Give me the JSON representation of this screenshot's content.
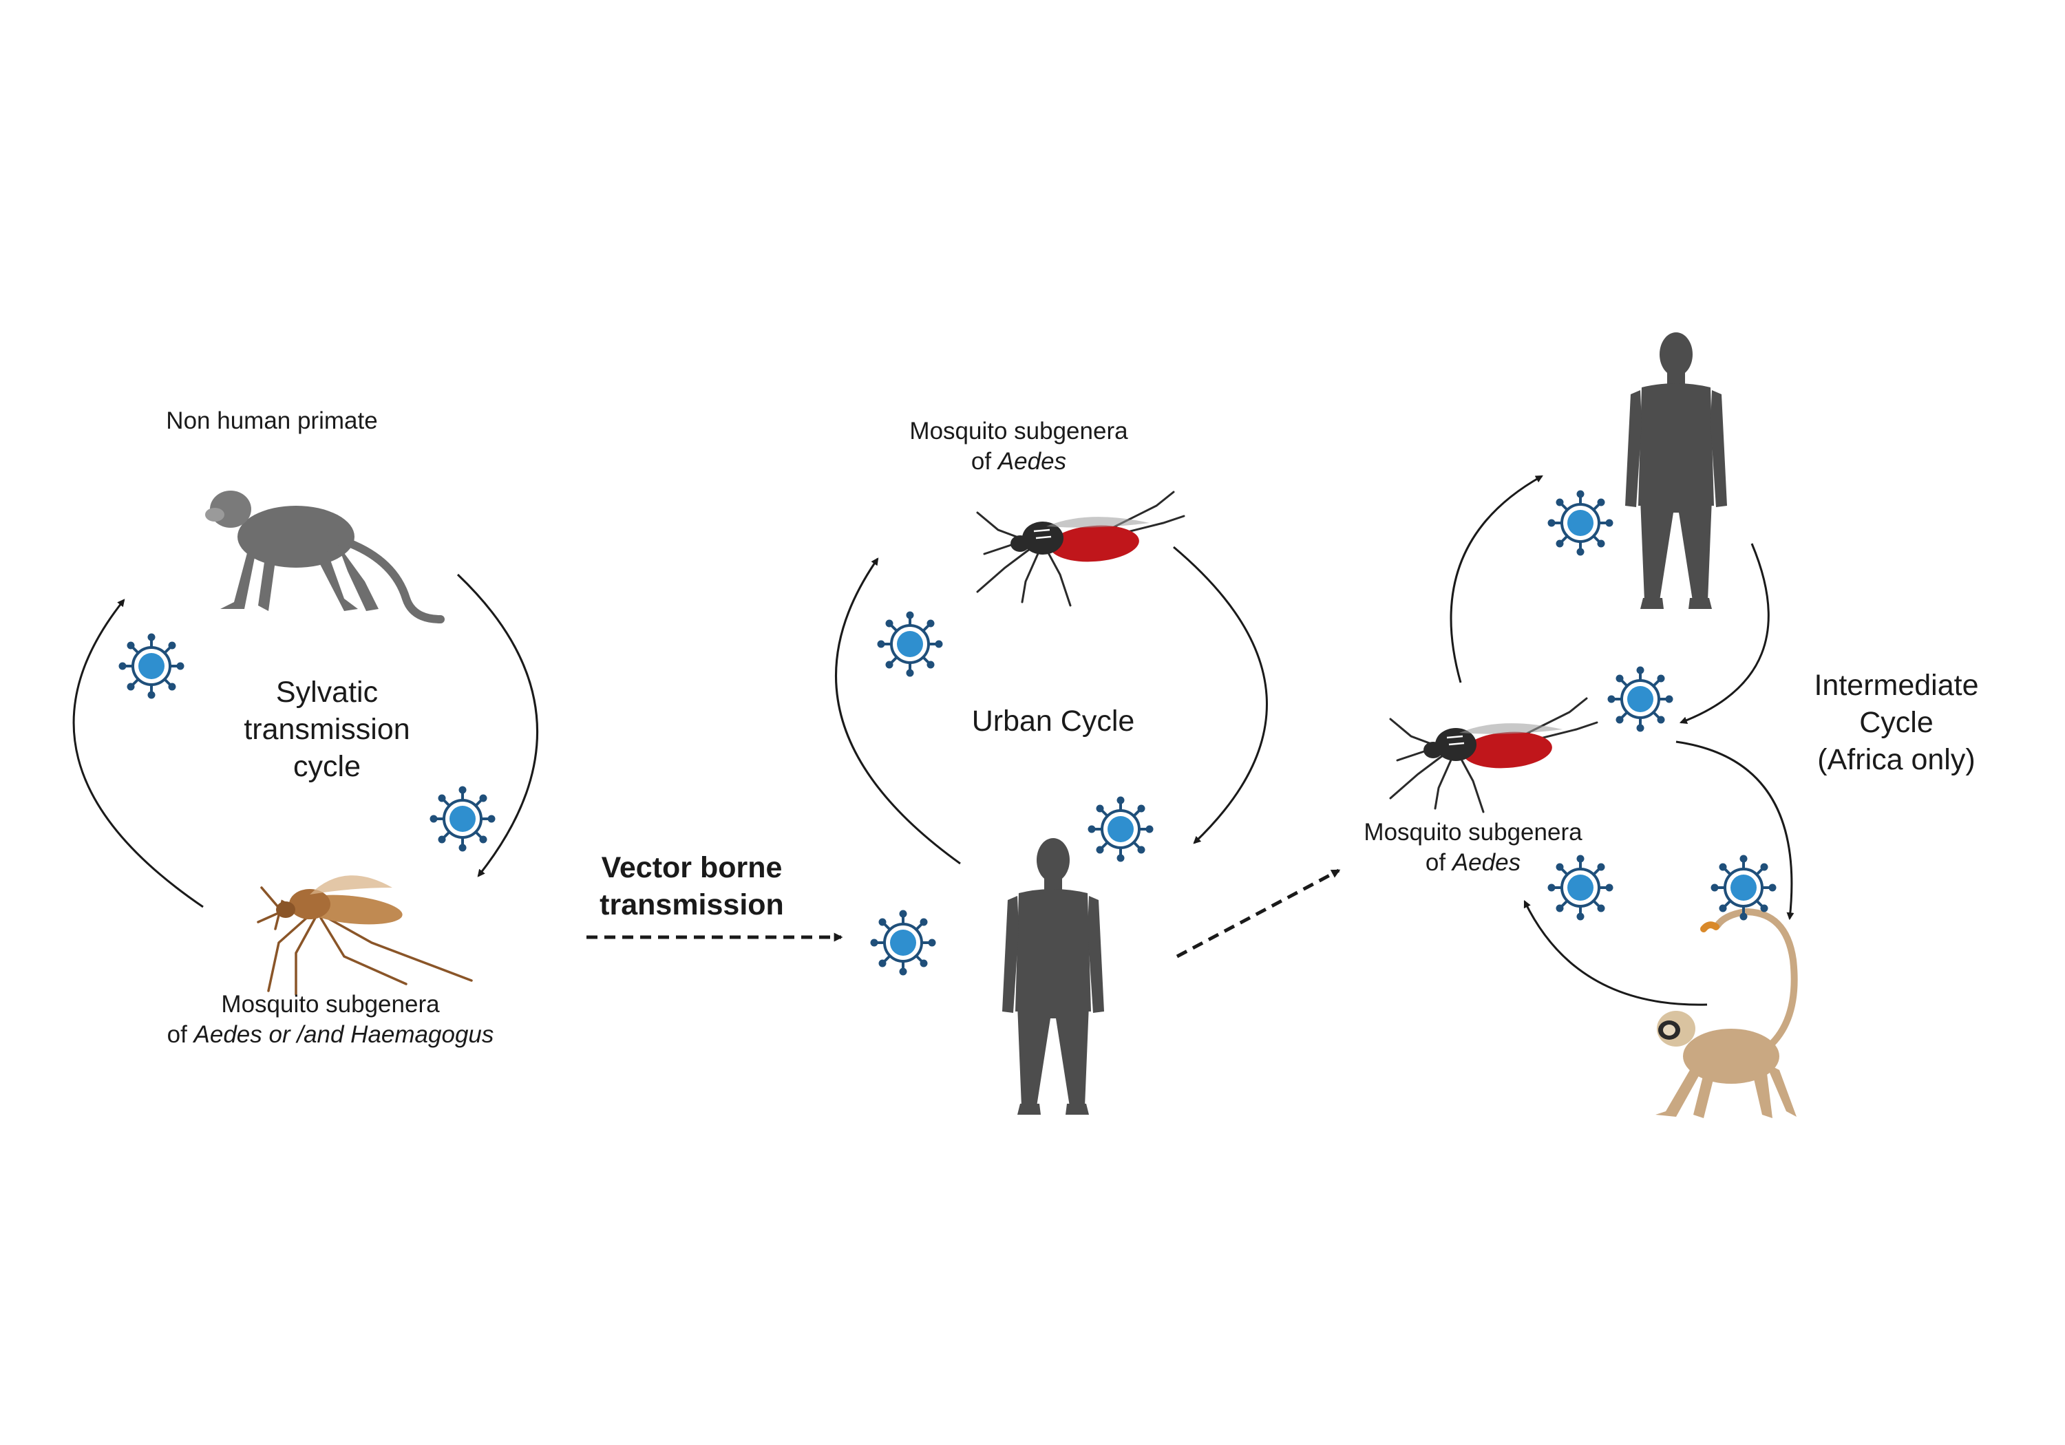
{
  "colors": {
    "background": "#ffffff",
    "arrow": "#1a1a1a",
    "human": "#4d4d4d",
    "old_world_monkey": "#6e6e6e",
    "vervet_monkey": "#c9a882",
    "virus_fill": "#2f8fcf",
    "virus_stroke": "#1f4f7a",
    "culex_mosquito": "#b57a44",
    "aedes_abdomen": "#c0161b",
    "aedes_body": "#2a2a2a"
  },
  "icons": [
    "monkey-icon",
    "mosquito-icon",
    "human-icon",
    "virus-icon",
    "vervet-monkey-icon"
  ],
  "sylvatic": {
    "host_label": "Non human primate",
    "cycle_line1": "Sylvatic",
    "cycle_line2": "transmission",
    "cycle_line3": "cycle",
    "vector_line1": "Mosquito subgenera",
    "vector_prefix": "of ",
    "vector_species": "Aedes or /and Haemagogus"
  },
  "transfer": {
    "line1": "Vector borne",
    "line2": "transmission"
  },
  "urban": {
    "vector_line1": "Mosquito subgenera",
    "vector_prefix": "of ",
    "vector_species": "Aedes",
    "cycle_title": "Urban Cycle"
  },
  "intermediate": {
    "vector_line1": "Mosquito subgenera",
    "vector_prefix": "of ",
    "vector_species": "Aedes",
    "cycle_line1": "Intermediate",
    "cycle_line2": "Cycle",
    "cycle_line3": "(Africa only)"
  }
}
